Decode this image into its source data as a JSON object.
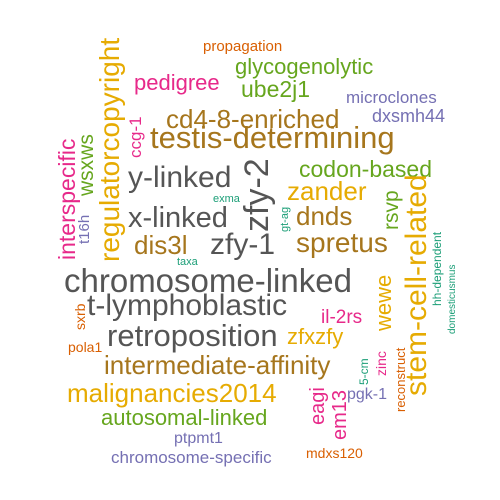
{
  "colors": {
    "gray": "#555555",
    "brown": "#a6761d",
    "green": "#66a61e",
    "orange": "#d95f02",
    "magenta": "#e7298a",
    "purple": "#7570b3",
    "teal": "#1b9e77",
    "gold": "#e6ab02"
  },
  "words": [
    "propagation",
    "glycogenolytic",
    "pedigree",
    "ube2j1",
    "microclones",
    "ccg-1",
    "cd4-8-enriched",
    "dxsmh44",
    "testis-determining",
    "codon-based",
    "y-linked",
    "zander",
    "exma",
    "x-linked",
    "gt-ag",
    "dnds",
    "dis3l",
    "zfy-1",
    "spretus",
    "taxa",
    "chromosome-linked",
    "t-lymphoblastic",
    "retroposition",
    "zfxzfy",
    "il-2rs",
    "intermediate-affinity",
    "malignancies2014",
    "pola1",
    "autosomal-linked",
    "pgk-1",
    "ptpmt1",
    "chromosome-specific",
    "mdxs120",
    "sxrb",
    "regulatorcopyright",
    "wsxws",
    "interspecific",
    "t16h",
    "zfy-2",
    "rsvp",
    "wewe",
    "stem-cell-related",
    "hh-dependent",
    "domesticusmus",
    "zinc",
    "5-cm",
    "eagi",
    "em13",
    "reconstruct"
  ]
}
